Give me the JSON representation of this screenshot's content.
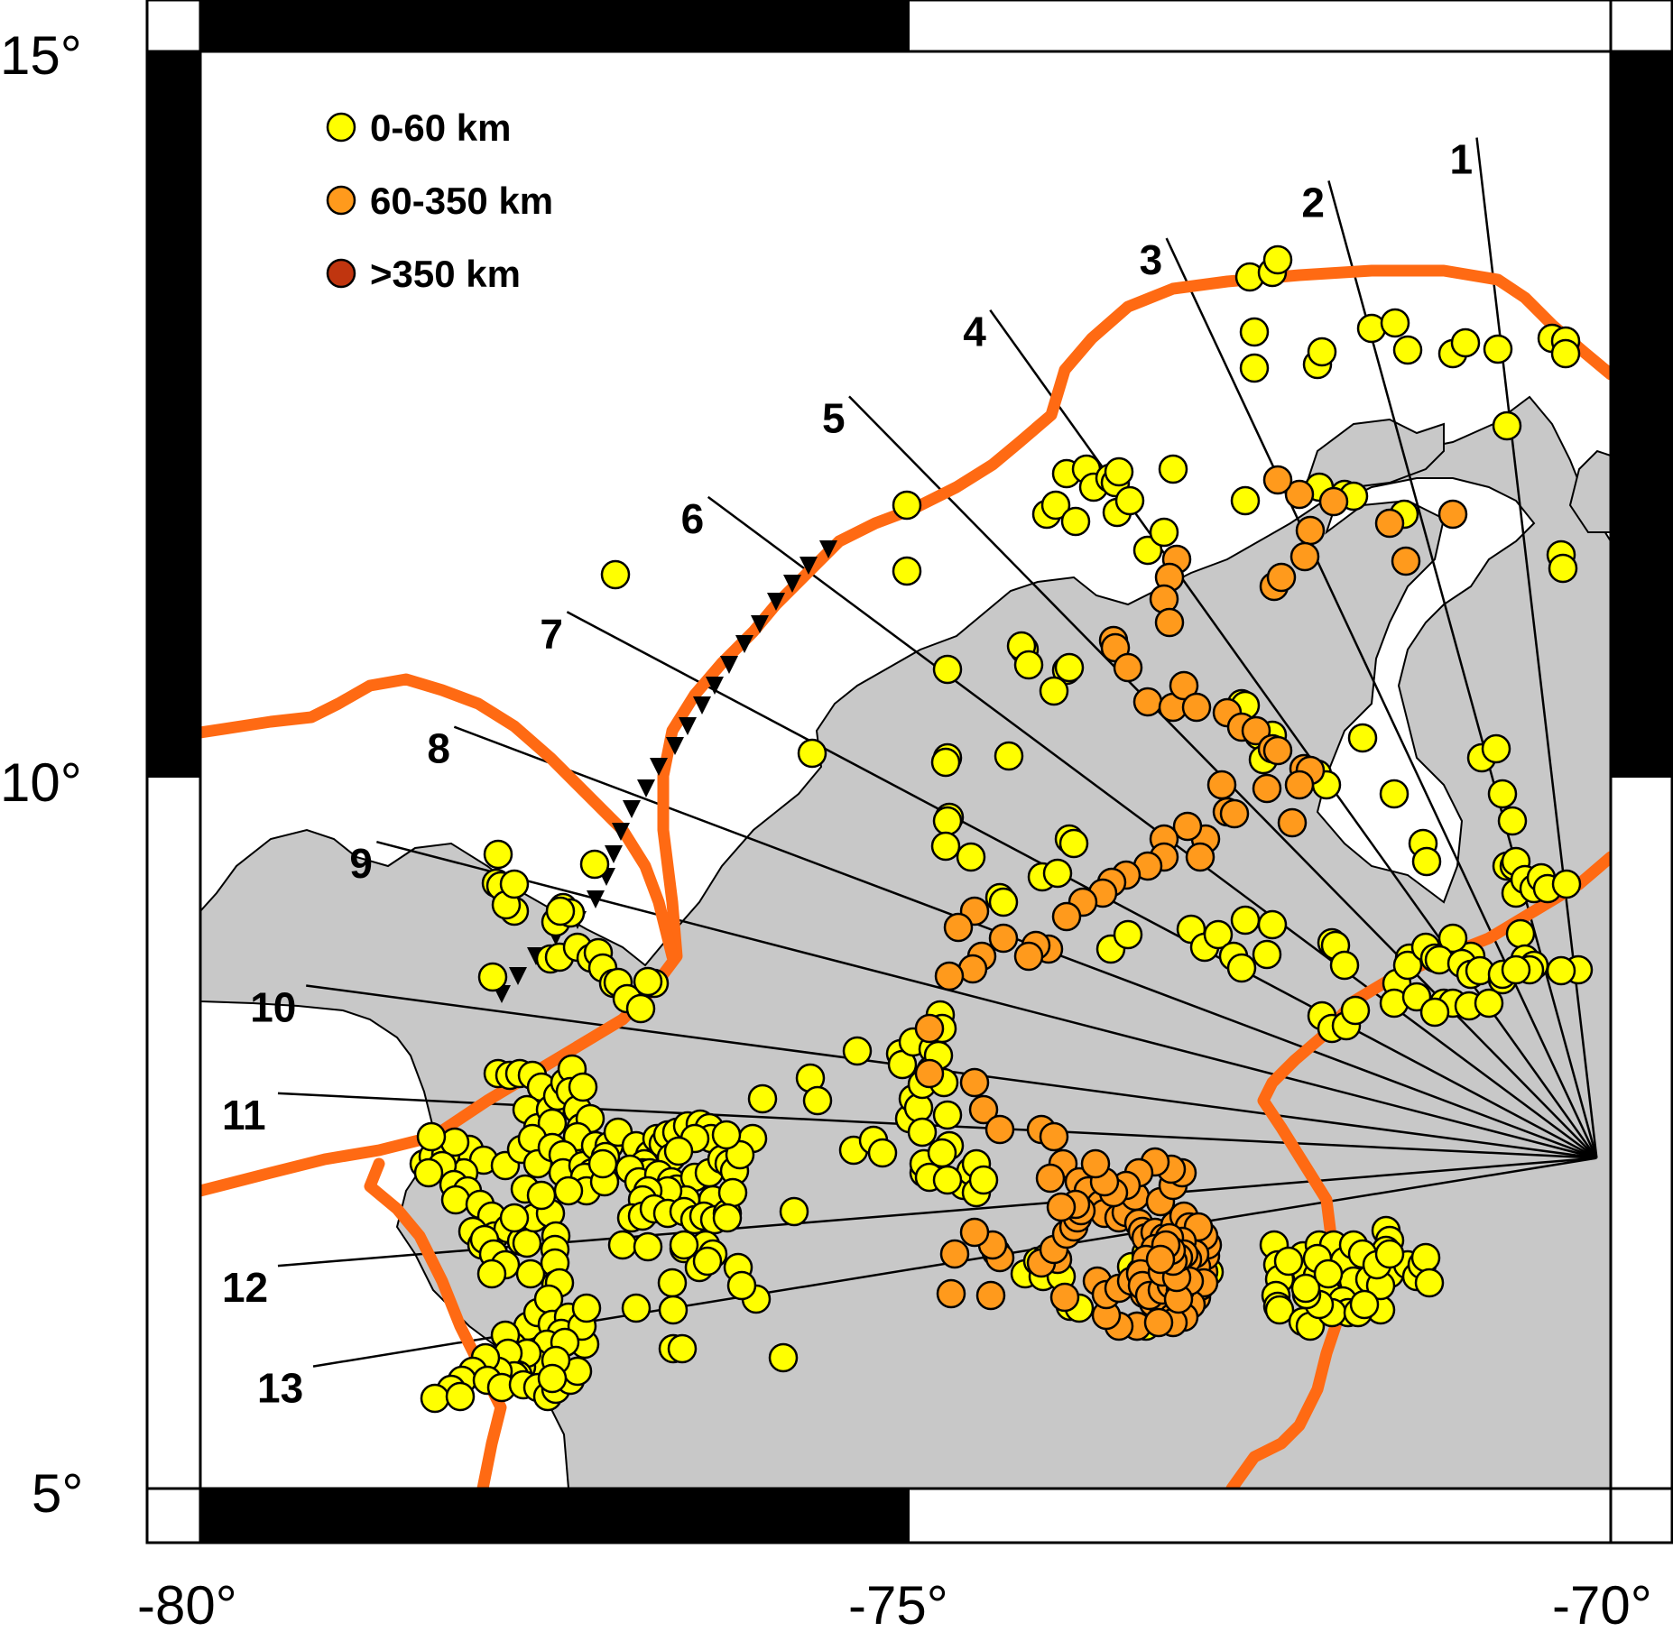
{
  "map": {
    "lon_range": [
      -80,
      -70
    ],
    "lat_range": [
      5,
      15
    ],
    "x_ticks": [
      {
        "value": -80,
        "label": "-80°"
      },
      {
        "value": -75,
        "label": "-75°"
      },
      {
        "value": -70,
        "label": "-70°"
      }
    ],
    "y_ticks": [
      {
        "value": 15,
        "label": "15°"
      },
      {
        "value": 10,
        "label": "10°"
      },
      {
        "value": 5,
        "label": "5°"
      }
    ],
    "colors": {
      "land": "#c8c8c8",
      "sea": "#ffffff",
      "plate_boundary": "#ff6a13",
      "shallow": "#ffff00",
      "intermediate": "#ff9a1c",
      "deep": "#c0350f"
    },
    "legend": [
      {
        "label": "0-60 km",
        "color": "#ffff00"
      },
      {
        "label": "60-350 km",
        "color": "#ff9a1c"
      },
      {
        "label": ">350 km",
        "color": "#c0350f"
      }
    ],
    "profile_origin": [
      -70.1,
      7.3
    ],
    "profiles": [
      {
        "label": "1",
        "end": [
          -70.95,
          14.4
        ]
      },
      {
        "label": "2",
        "end": [
          -72.0,
          14.1
        ]
      },
      {
        "label": "3",
        "end": [
          -73.15,
          13.7
        ]
      },
      {
        "label": "4",
        "end": [
          -74.4,
          13.2
        ]
      },
      {
        "label": "5",
        "end": [
          -75.4,
          12.6
        ]
      },
      {
        "label": "6",
        "end": [
          -76.4,
          11.9
        ]
      },
      {
        "label": "7",
        "end": [
          -77.4,
          11.1
        ]
      },
      {
        "label": "8",
        "end": [
          -78.2,
          10.3
        ]
      },
      {
        "label": "9",
        "end": [
          -78.75,
          9.5
        ]
      },
      {
        "label": "10",
        "end": [
          -79.25,
          8.5
        ]
      },
      {
        "label": "11",
        "end": [
          -79.45,
          7.75
        ]
      },
      {
        "label": "12",
        "end": [
          -79.45,
          6.55
        ]
      },
      {
        "label": "13",
        "end": [
          -79.2,
          5.85
        ]
      }
    ]
  }
}
